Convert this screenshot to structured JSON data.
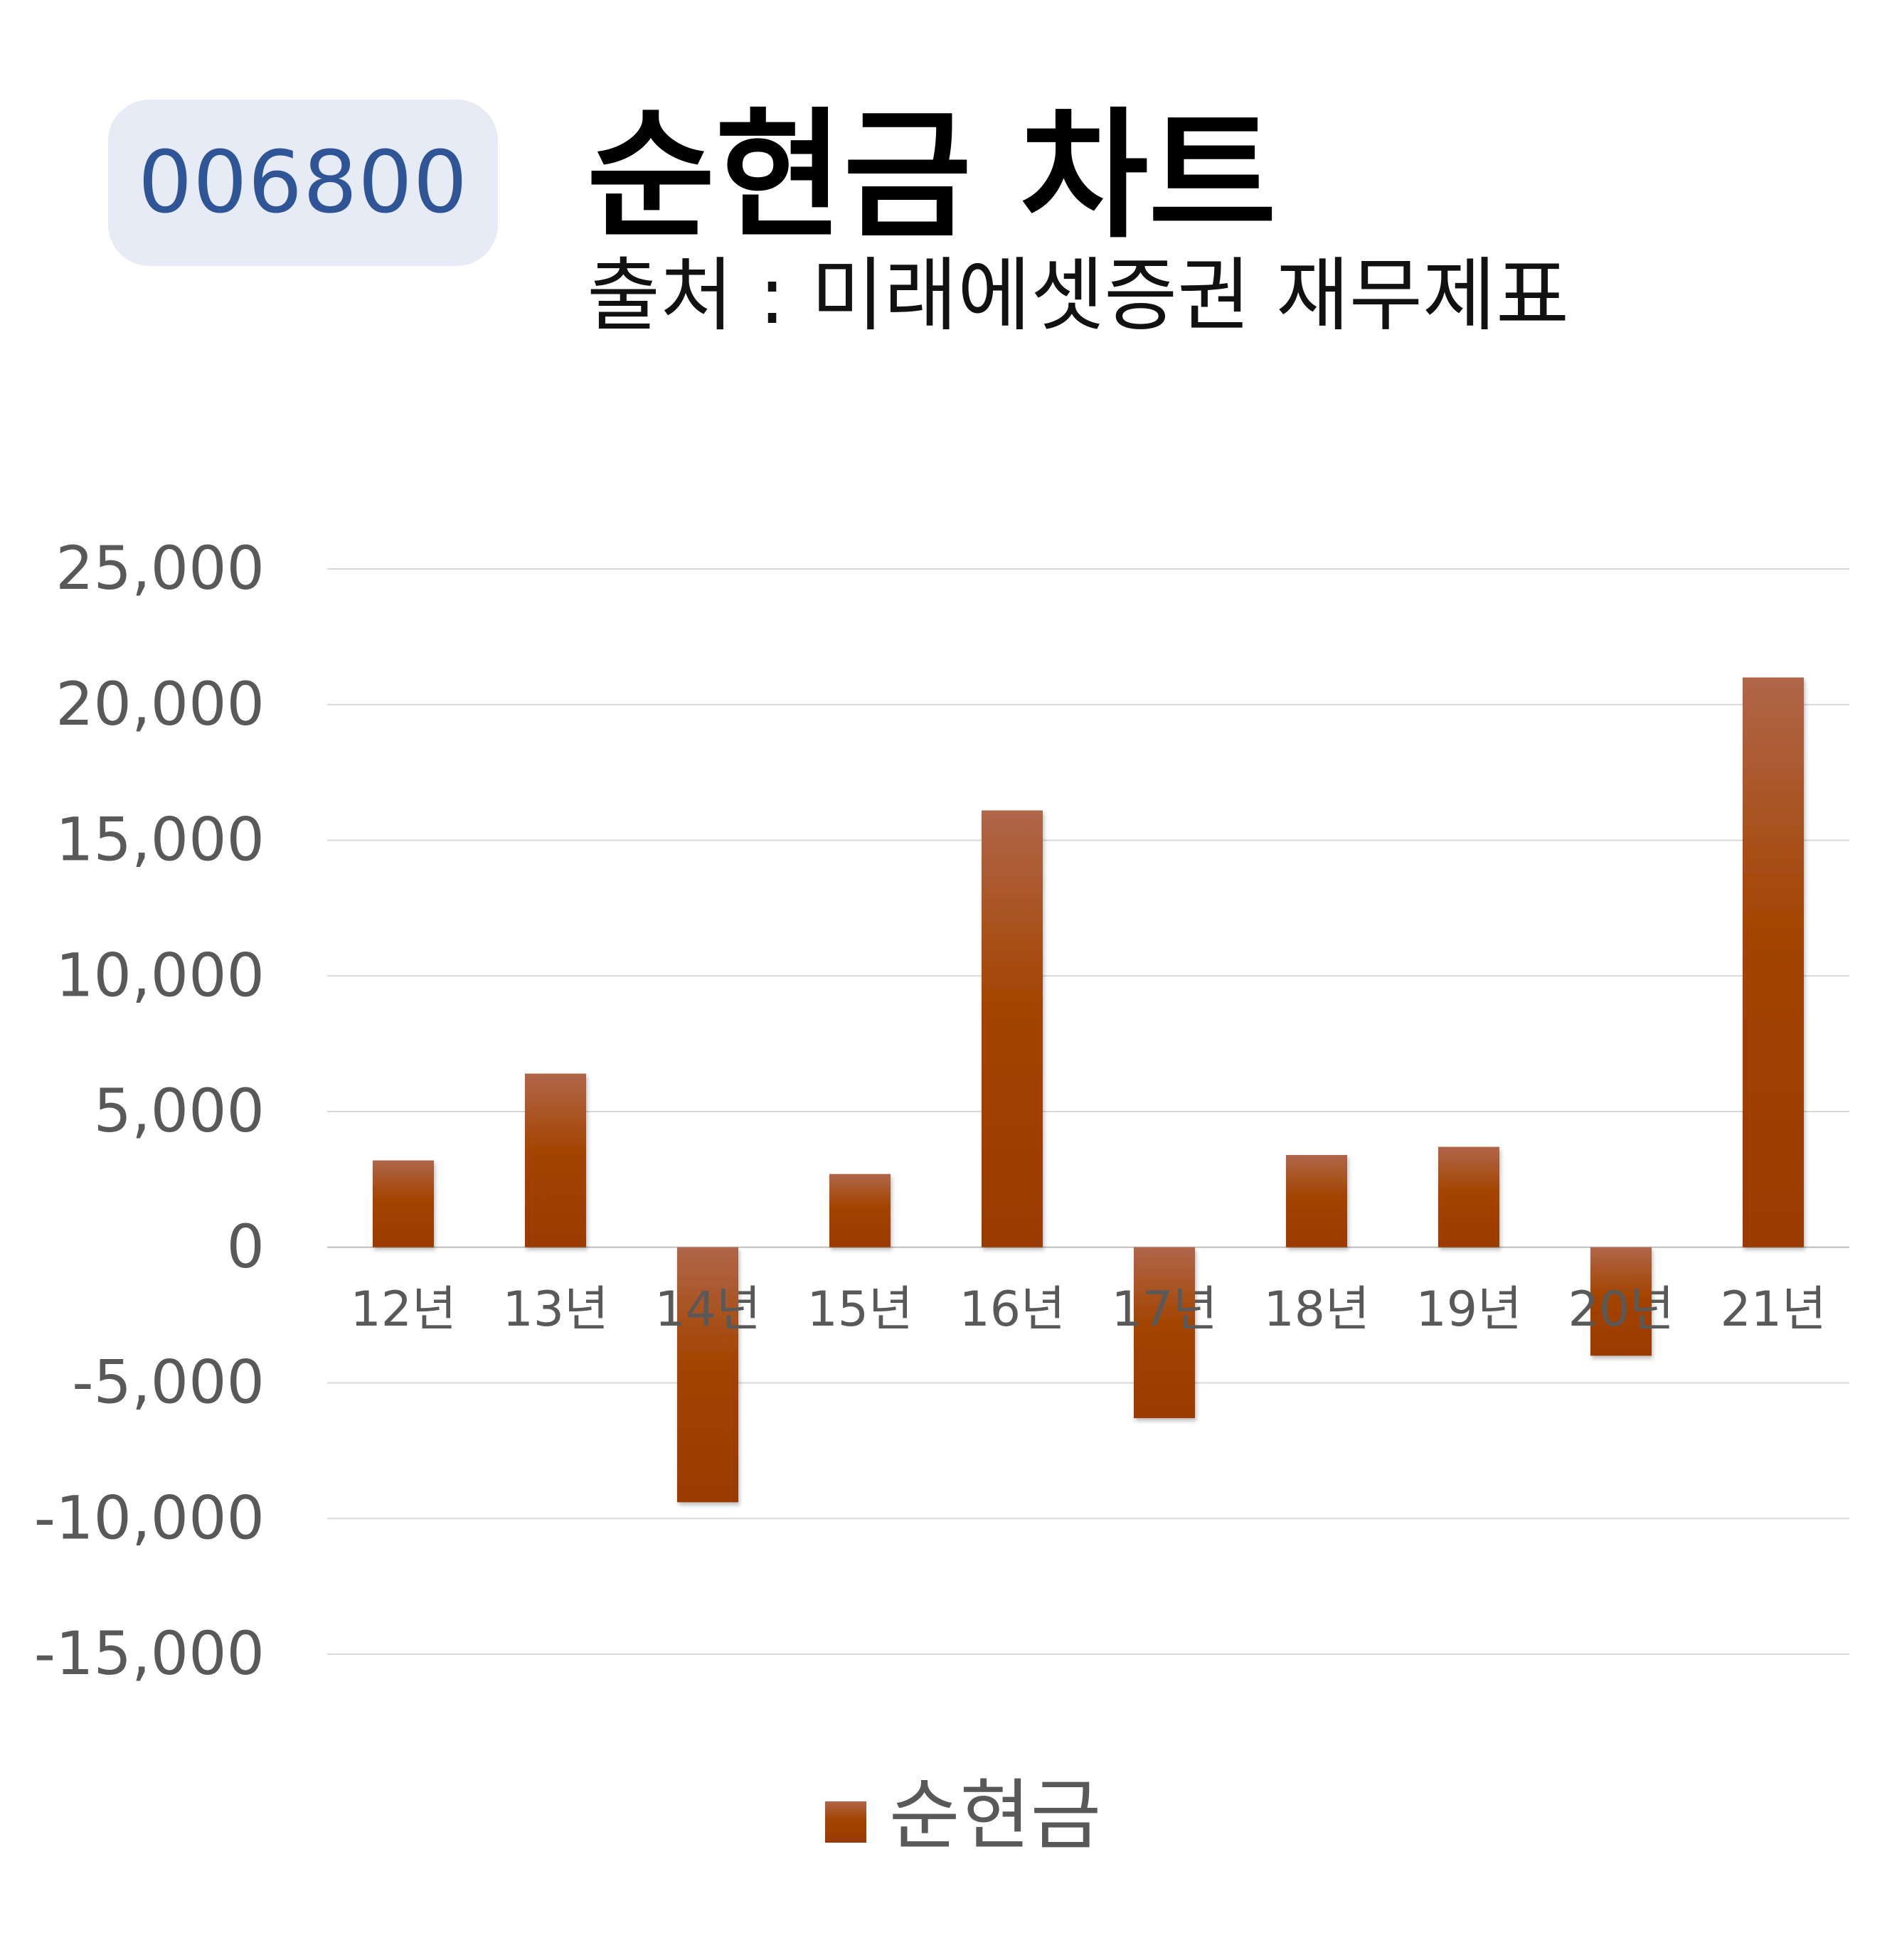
{
  "header": {
    "stock_code": "006800",
    "title": "순현금 차트",
    "subtitle": "출처 : 미래에셋증권 재무제표"
  },
  "colors": {
    "badge_bg": "#E6EBF6",
    "badge_text": "#2F5597",
    "bar_top": "#B0664A",
    "bar_bottom": "#9A3A00",
    "grid": "#D9D9D9",
    "axis_text": "#595959"
  },
  "chart_data": {
    "type": "bar",
    "title": "",
    "xlabel": "",
    "ylabel": "",
    "categories": [
      "12년",
      "13년",
      "14년",
      "15년",
      "16년",
      "17년",
      "18년",
      "19년",
      "20년",
      "21년"
    ],
    "series": [
      {
        "name": "순현금",
        "values": [
          3200,
          6400,
          -9400,
          2700,
          16100,
          -6300,
          3400,
          3700,
          -4000,
          21000
        ]
      }
    ],
    "ylim": [
      -15000,
      25000
    ],
    "y_ticks": [
      25000,
      20000,
      15000,
      10000,
      5000,
      0,
      -5000,
      -10000,
      -15000
    ],
    "y_tick_labels": [
      "25,000",
      "20,000",
      "15,000",
      "10,000",
      "5,000",
      "0",
      "-5,000",
      "-10,000",
      "-15,000"
    ],
    "grid": true,
    "legend": {
      "position": "bottom",
      "entries": [
        "순현금"
      ]
    }
  }
}
